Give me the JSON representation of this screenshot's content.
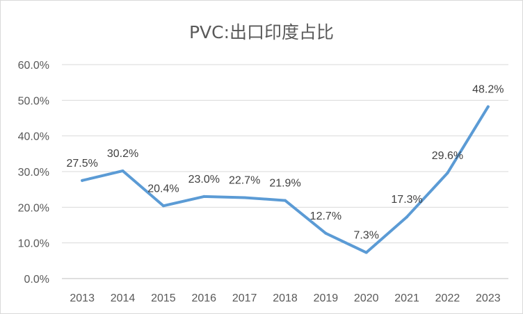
{
  "chart_data": {
    "type": "line",
    "title": "PVC:出口印度占比",
    "xlabel": "",
    "ylabel": "",
    "categories": [
      "2013",
      "2014",
      "2015",
      "2016",
      "2017",
      "2018",
      "2019",
      "2020",
      "2021",
      "2022",
      "2023"
    ],
    "series": [
      {
        "values": [
          27.5,
          30.2,
          20.4,
          23.0,
          22.7,
          21.9,
          12.7,
          7.3,
          17.3,
          29.6,
          48.2
        ],
        "data_labels": [
          "27.5%",
          "30.2%",
          "20.4%",
          "23.0%",
          "22.7%",
          "21.9%",
          "12.7%",
          "7.3%",
          "17.3%",
          "29.6%",
          "48.2%"
        ],
        "color": "#5b9bd5"
      }
    ],
    "ylim": [
      0,
      60
    ],
    "yticks": [
      0,
      10,
      20,
      30,
      40,
      50,
      60
    ],
    "ytick_labels": [
      "0.0%",
      "10.0%",
      "20.0%",
      "30.0%",
      "40.0%",
      "50.0%",
      "60.0%"
    ],
    "grid": true,
    "legend": "none"
  }
}
